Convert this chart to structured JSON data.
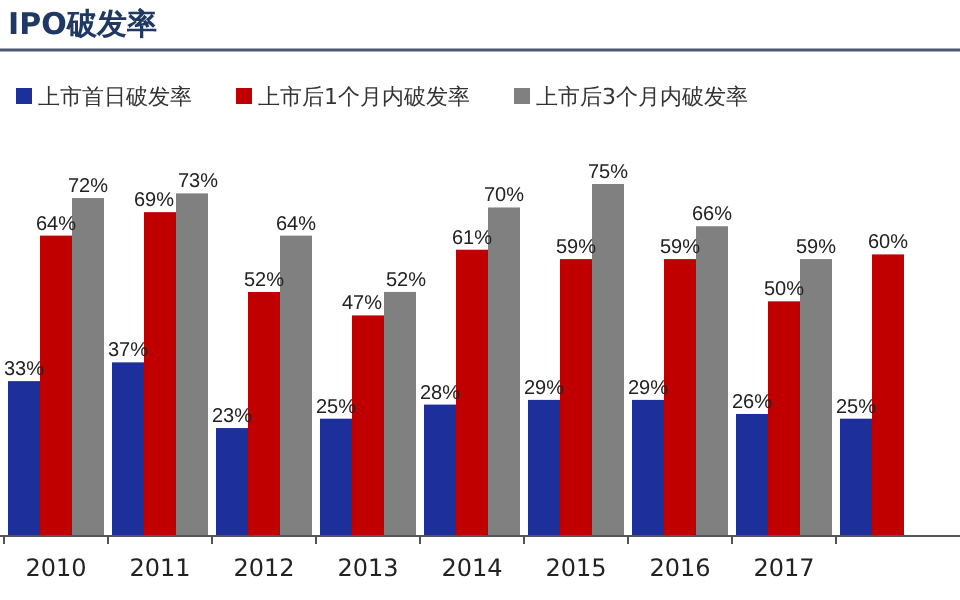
{
  "chart_data": {
    "type": "bar",
    "title": "IPO破发率",
    "categories": [
      "2010",
      "2011",
      "2012",
      "2013",
      "2014",
      "2015",
      "2016",
      "2017",
      null
    ],
    "series": [
      {
        "name": "上市首日破发率",
        "color": "#1c2f9b",
        "values": [
          33,
          37,
          23,
          25,
          28,
          29,
          29,
          26,
          25
        ],
        "value_labels": [
          "33%",
          "37%",
          "23%",
          "25%",
          "28%",
          "29%",
          "29%",
          "26%",
          "25%"
        ]
      },
      {
        "name": "上市后1个月内破发率",
        "color": "#c00000",
        "values": [
          64,
          69,
          52,
          47,
          61,
          59,
          59,
          50,
          60
        ],
        "value_labels": [
          "64%",
          "69%",
          "52%",
          "47%",
          "61%",
          "59%",
          "59%",
          "50%",
          "60%"
        ]
      },
      {
        "name": "上市后3个月内破发率",
        "color": "#808080",
        "values": [
          72,
          73,
          64,
          52,
          70,
          75,
          66,
          59,
          null
        ],
        "value_labels": [
          "72%",
          "73%",
          "64%",
          "52%",
          "70%",
          "75%",
          "66%",
          "59%",
          null
        ]
      }
    ],
    "legend": "top"
  }
}
